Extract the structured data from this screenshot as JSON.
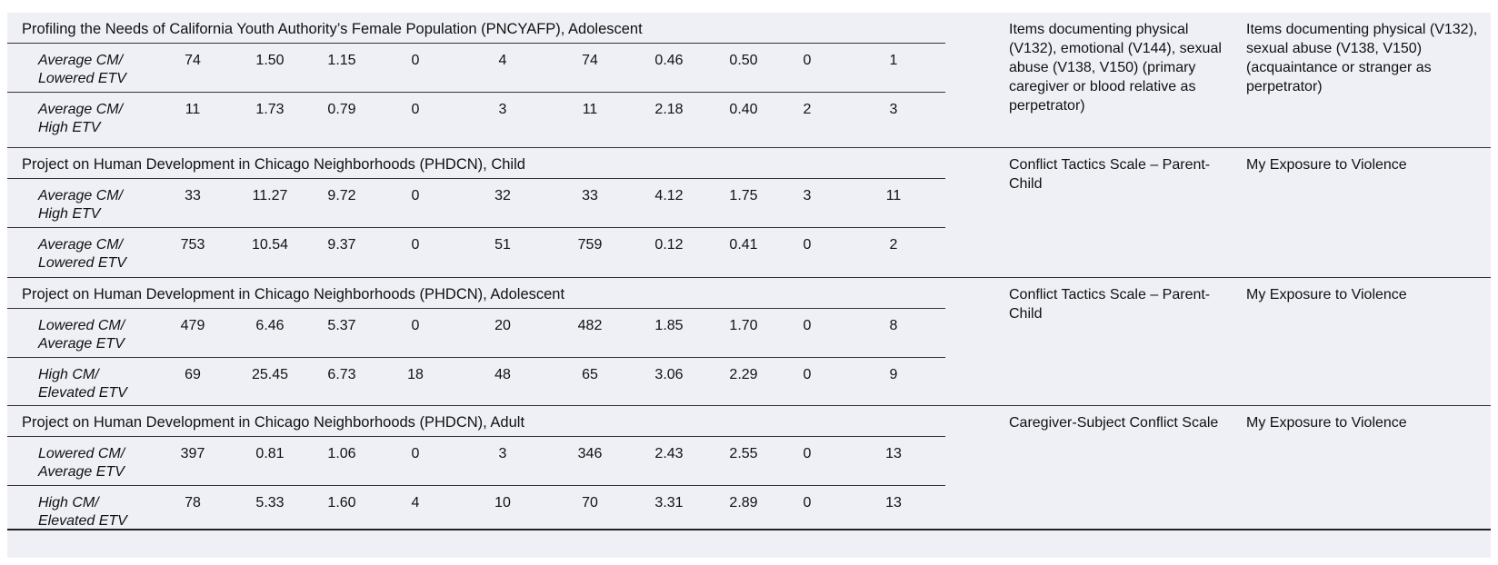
{
  "sections": [
    {
      "title": "Profiling the Needs of California Youth Authority’s Female Population (PNCYAFP), Adolescent",
      "measure_1": "Items documenting physical (V132), emotional (V144), sexual abuse (V138, V150) (primary caregiver or blood relative as perpetrator)",
      "measure_2": "Items documenting physical (V132), sexual abuse (V138, V150) (acquaintance or stranger as perpetrator)",
      "rows": [
        {
          "label_1": "Average CM/",
          "label_2": "Lowered ETV",
          "values": [
            "74",
            "1.50",
            "1.15",
            "0",
            "4",
            "74",
            "0.46",
            "0.50",
            "0",
            "1"
          ]
        },
        {
          "label_1": "Average CM/",
          "label_2": "High ETV",
          "values": [
            "11",
            "1.73",
            "0.79",
            "0",
            "3",
            "11",
            "2.18",
            "0.40",
            "2",
            "3"
          ]
        }
      ]
    },
    {
      "title": "Project on Human Development in Chicago Neighborhoods (PHDCN), Child",
      "measure_1": "Conflict Tactics Scale – Parent-Child",
      "measure_2": "My Exposure to Violence",
      "rows": [
        {
          "label_1": "Average CM/",
          "label_2": "High ETV",
          "values": [
            "33",
            "11.27",
            "9.72",
            "0",
            "32",
            "33",
            "4.12",
            "1.75",
            "3",
            "11"
          ]
        },
        {
          "label_1": "Average CM/",
          "label_2": "Lowered ETV",
          "values": [
            "753",
            "10.54",
            "9.37",
            "0",
            "51",
            "759",
            "0.12",
            "0.41",
            "0",
            "2"
          ]
        }
      ]
    },
    {
      "title": "Project on Human Development in Chicago Neighborhoods (PHDCN), Adolescent",
      "measure_1": "Conflict Tactics Scale – Parent-Child",
      "measure_2": "My Exposure to Violence",
      "rows": [
        {
          "label_1": "Lowered CM/",
          "label_2": "Average ETV",
          "values": [
            "479",
            "6.46",
            "5.37",
            "0",
            "20",
            "482",
            "1.85",
            "1.70",
            "0",
            "8"
          ]
        },
        {
          "label_1": "High CM/",
          "label_2": "Elevated ETV",
          "values": [
            "69",
            "25.45",
            "6.73",
            "18",
            "48",
            "65",
            "3.06",
            "2.29",
            "0",
            "9"
          ]
        }
      ]
    },
    {
      "title": "Project on Human Development in Chicago Neighborhoods (PHDCN), Adult",
      "measure_1": "Caregiver-Subject Conflict Scale",
      "measure_2": "My Exposure to Violence",
      "rows": [
        {
          "label_1": "Lowered CM/",
          "label_2": "Average ETV",
          "values": [
            "397",
            "0.81",
            "1.06",
            "0",
            "3",
            "346",
            "2.43",
            "2.55",
            "0",
            "13"
          ]
        },
        {
          "label_1": "High CM/",
          "label_2": "Elevated ETV",
          "values": [
            "78",
            "5.33",
            "1.60",
            "4",
            "10",
            "70",
            "3.31",
            "2.89",
            "0",
            "13"
          ]
        }
      ]
    }
  ]
}
